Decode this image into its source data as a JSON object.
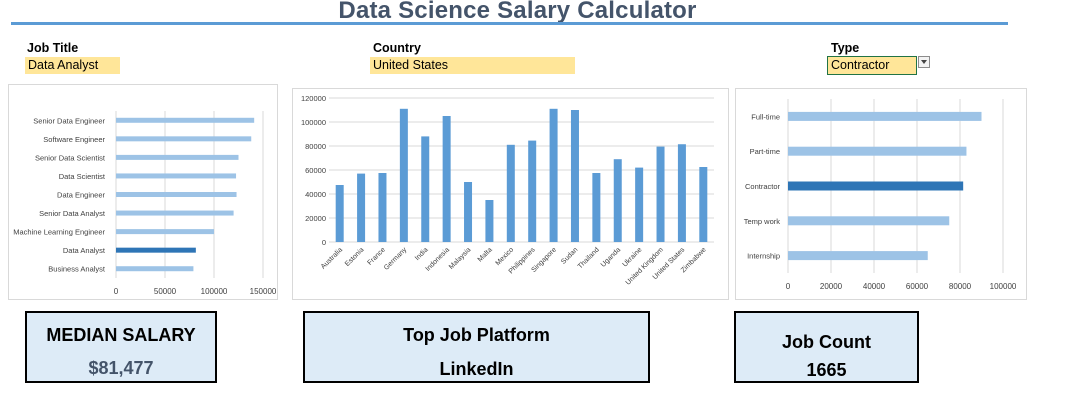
{
  "title": "Data Science Salary Calculator",
  "filters": {
    "job_title": {
      "label": "Job Title",
      "value": "Data Analyst"
    },
    "country": {
      "label": "Country",
      "value": "United States"
    },
    "type": {
      "label": "Type",
      "value": "Contractor"
    }
  },
  "kpis": {
    "median_salary": {
      "label": "MEDIAN SALARY",
      "value": "$81,477"
    },
    "top_platform": {
      "label": "Top Job Platform",
      "value": "LinkedIn"
    },
    "job_count": {
      "label": "Job Count",
      "value": "1665"
    }
  },
  "colors": {
    "bar": "#9dc3e6",
    "highlight": "#2e75b6",
    "column": "#5b9bd5",
    "grid": "#d9d9d9",
    "axis_text": "#404040",
    "title": "#44546a",
    "input_fill": "#ffe699",
    "kpi_fill": "#ddebf7"
  },
  "chart_data": [
    {
      "type": "bar",
      "orientation": "horizontal",
      "categories": [
        "Senior Data Engineer",
        "Software Engineer",
        "Senior Data Scientist",
        "Data Scientist",
        "Data Engineer",
        "Senior Data Analyst",
        "Machine Learning Engineer",
        "Data Analyst",
        "Business Analyst"
      ],
      "values": [
        141000,
        138000,
        125000,
        122500,
        123000,
        120000,
        100000,
        81477,
        79000
      ],
      "highlight": "Data Analyst",
      "xlim": [
        0,
        150000
      ],
      "xticks": [
        "0",
        "50000",
        "100000",
        "150000"
      ],
      "grid": true
    },
    {
      "type": "bar",
      "orientation": "vertical",
      "categories": [
        "Australia",
        "Estonia",
        "France",
        "Germany",
        "India",
        "Indonesia",
        "Malaysia",
        "Malta",
        "Mexico",
        "Philippines",
        "Singapore",
        "Sudan",
        "Thailand",
        "Uganda",
        "Ukraine",
        "United Kingdom",
        "United States",
        "Zimbabwe"
      ],
      "values": [
        47500,
        57000,
        57500,
        111000,
        88000,
        105000,
        50000,
        35000,
        81000,
        84500,
        111000,
        110000,
        57500,
        69000,
        62000,
        79500,
        81477,
        62500
      ],
      "ylim": [
        0,
        120000
      ],
      "yticks": [
        "0",
        "20000",
        "40000",
        "60000",
        "80000",
        "100000",
        "120000"
      ],
      "grid": true
    },
    {
      "type": "bar",
      "orientation": "horizontal",
      "categories": [
        "Full-time",
        "Part-time",
        "Contractor",
        "Temp work",
        "Internship"
      ],
      "values": [
        90000,
        83000,
        81477,
        75000,
        65000
      ],
      "highlight": "Contractor",
      "xlim": [
        0,
        100000
      ],
      "xticks": [
        "0",
        "20000",
        "40000",
        "60000",
        "80000",
        "100000"
      ],
      "grid": true
    }
  ]
}
